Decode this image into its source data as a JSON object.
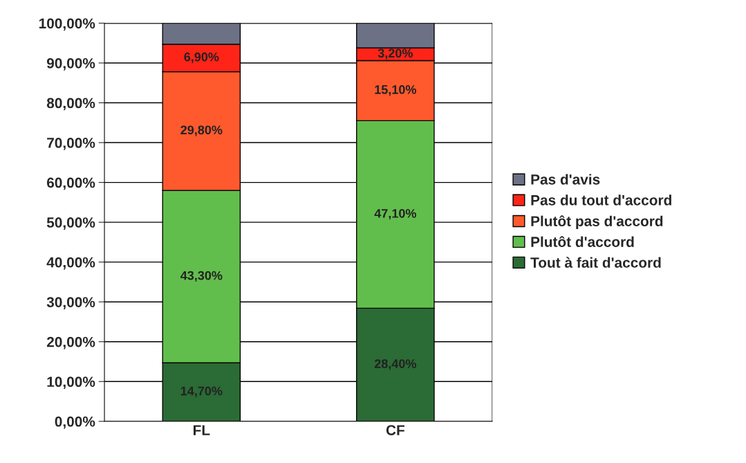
{
  "chart_data": {
    "type": "bar",
    "stacked": true,
    "categories": [
      "FL",
      "CF"
    ],
    "series": [
      {
        "name": "Tout à fait d'accord",
        "color": "#2b6b35",
        "values": [
          14.7,
          28.4
        ],
        "value_labels": [
          "14,70%",
          "28,40%"
        ]
      },
      {
        "name": "Plutôt d'accord",
        "color": "#62be4c",
        "values": [
          43.3,
          47.1
        ],
        "value_labels": [
          "43,30%",
          "47,10%"
        ]
      },
      {
        "name": "Plutôt pas d'accord",
        "color": "#ff5a2e",
        "values": [
          29.8,
          15.1
        ],
        "value_labels": [
          "29,80%",
          "15,10%"
        ]
      },
      {
        "name": "Pas du tout d'accord",
        "color": "#ff2418",
        "values": [
          6.9,
          3.2
        ],
        "value_labels": [
          "6,90%",
          "3,20%"
        ]
      },
      {
        "name": "Pas d'avis",
        "color": "#6c7186",
        "values": [
          5.3,
          6.2
        ],
        "value_labels": [
          null,
          null
        ]
      }
    ],
    "ylim": [
      0,
      100
    ],
    "yticks": [
      {
        "value": 0,
        "label": "0,00%"
      },
      {
        "value": 10,
        "label": "10,00%"
      },
      {
        "value": 20,
        "label": "20,00%"
      },
      {
        "value": 30,
        "label": "30,00%"
      },
      {
        "value": 40,
        "label": "40,00%"
      },
      {
        "value": 50,
        "label": "50,00%"
      },
      {
        "value": 60,
        "label": "60,00%"
      },
      {
        "value": 70,
        "label": "70,00%"
      },
      {
        "value": 80,
        "label": "80,00%"
      },
      {
        "value": 90,
        "label": "90,00%"
      },
      {
        "value": 100,
        "label": "100,00%"
      }
    ],
    "grid": "y",
    "legend": "right"
  }
}
